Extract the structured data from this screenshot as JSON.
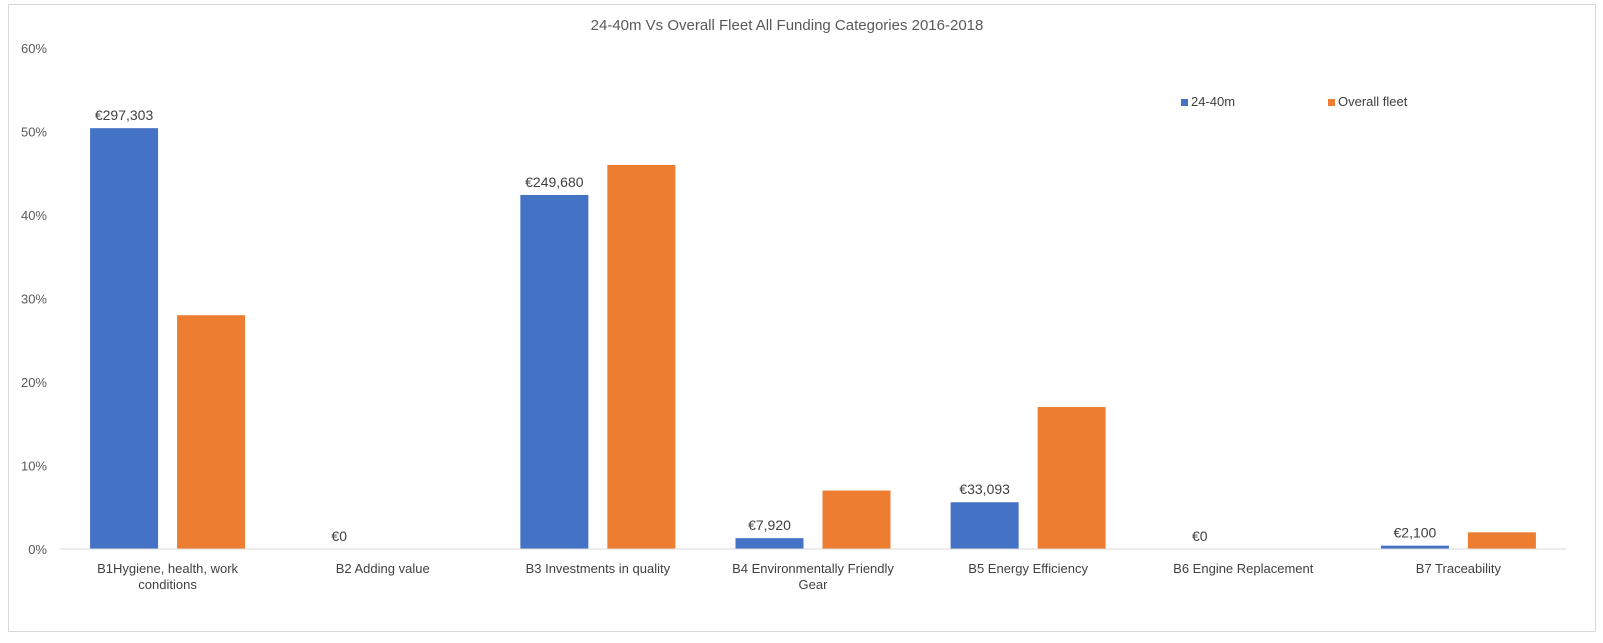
{
  "chart_data": {
    "type": "bar",
    "title": "24-40m Vs Overall Fleet All Funding Categories 2016-2018",
    "xlabel": "",
    "ylabel": "",
    "ylim": [
      0,
      60
    ],
    "yticks": [
      "0%",
      "10%",
      "20%",
      "30%",
      "40%",
      "50%",
      "60%"
    ],
    "categories": [
      [
        "B1Hygiene, health, work",
        "conditions"
      ],
      [
        "B2 Adding value"
      ],
      [
        "B3 Investments in quality"
      ],
      [
        "B4 Environmentally Friendly",
        "Gear"
      ],
      [
        "B5 Energy Efficiency"
      ],
      [
        "B6 Engine Replacement"
      ],
      [
        "B7 Traceability"
      ]
    ],
    "series": [
      {
        "name": "24-40m",
        "color": "#4472C4",
        "values": [
          50.4,
          0,
          42.4,
          1.3,
          5.6,
          0,
          0.4
        ],
        "data_labels": [
          "€297,303",
          "€0",
          "€249,680",
          "€7,920",
          "€33,093",
          "€0",
          "€2,100"
        ]
      },
      {
        "name": "Overall fleet",
        "color": "#ED7D31",
        "values": [
          28,
          0,
          46,
          7,
          17,
          0,
          2
        ],
        "data_labels": []
      }
    ],
    "grid": false,
    "legend": "top-right"
  }
}
